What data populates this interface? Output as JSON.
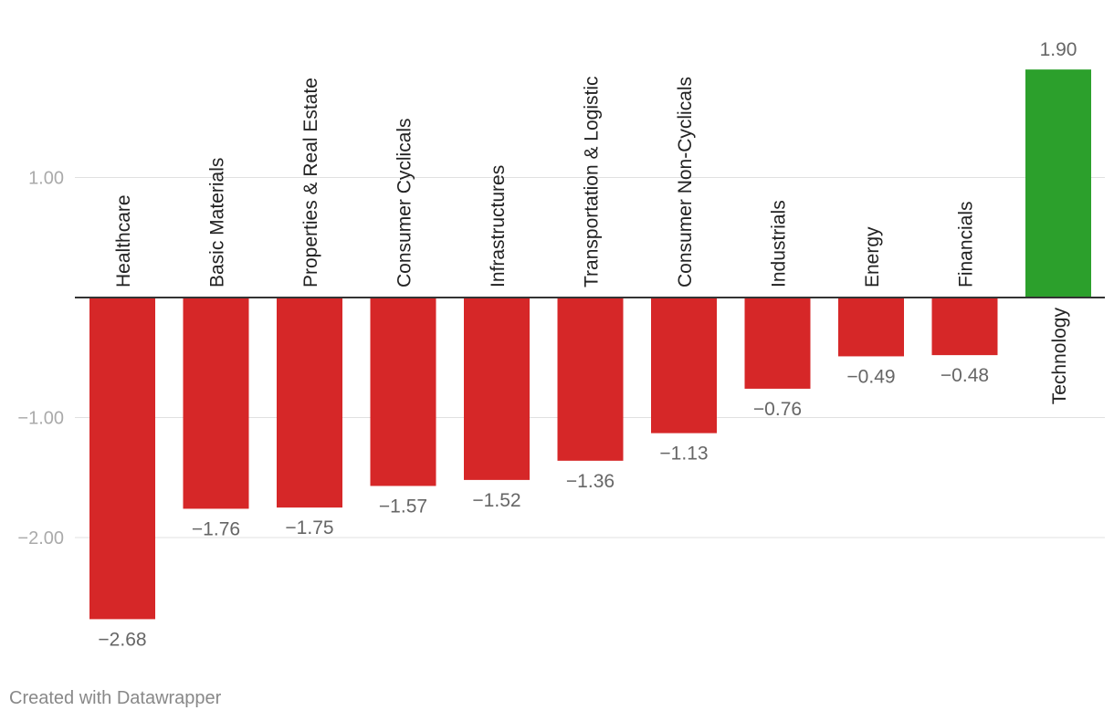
{
  "chart_data": {
    "type": "bar",
    "categories": [
      "Healthcare",
      "Basic Materials",
      "Properties & Real Estate",
      "Consumer Cyclicals",
      "Infrastructures",
      "Transportation & Logistic",
      "Consumer Non-Cyclicals",
      "Industrials",
      "Energy",
      "Financials",
      "Technology"
    ],
    "values": [
      -2.68,
      -1.76,
      -1.75,
      -1.57,
      -1.52,
      -1.36,
      -1.13,
      -0.76,
      -0.49,
      -0.48,
      1.9
    ],
    "value_labels": [
      "−2.68",
      "−1.76",
      "−1.75",
      "−1.57",
      "−1.52",
      "−1.36",
      "−1.13",
      "−0.76",
      "−0.49",
      "−0.48",
      "1.90"
    ],
    "yticks": [
      1.0,
      -1.0,
      -2.0
    ],
    "ytick_labels": [
      "1.00",
      "−1.00",
      "−2.00"
    ],
    "ylim": [
      -3.1,
      2.4
    ],
    "grid": true,
    "colors": {
      "negative": "#d62728",
      "positive": "#2ca02c",
      "grid": "#e0e0e0",
      "axis": "#333333",
      "value_label": "#666666",
      "tick_label": "#aaaaaa"
    },
    "title": "",
    "xlabel": "",
    "ylabel": ""
  },
  "footer": {
    "credit": "Created with Datawrapper"
  }
}
